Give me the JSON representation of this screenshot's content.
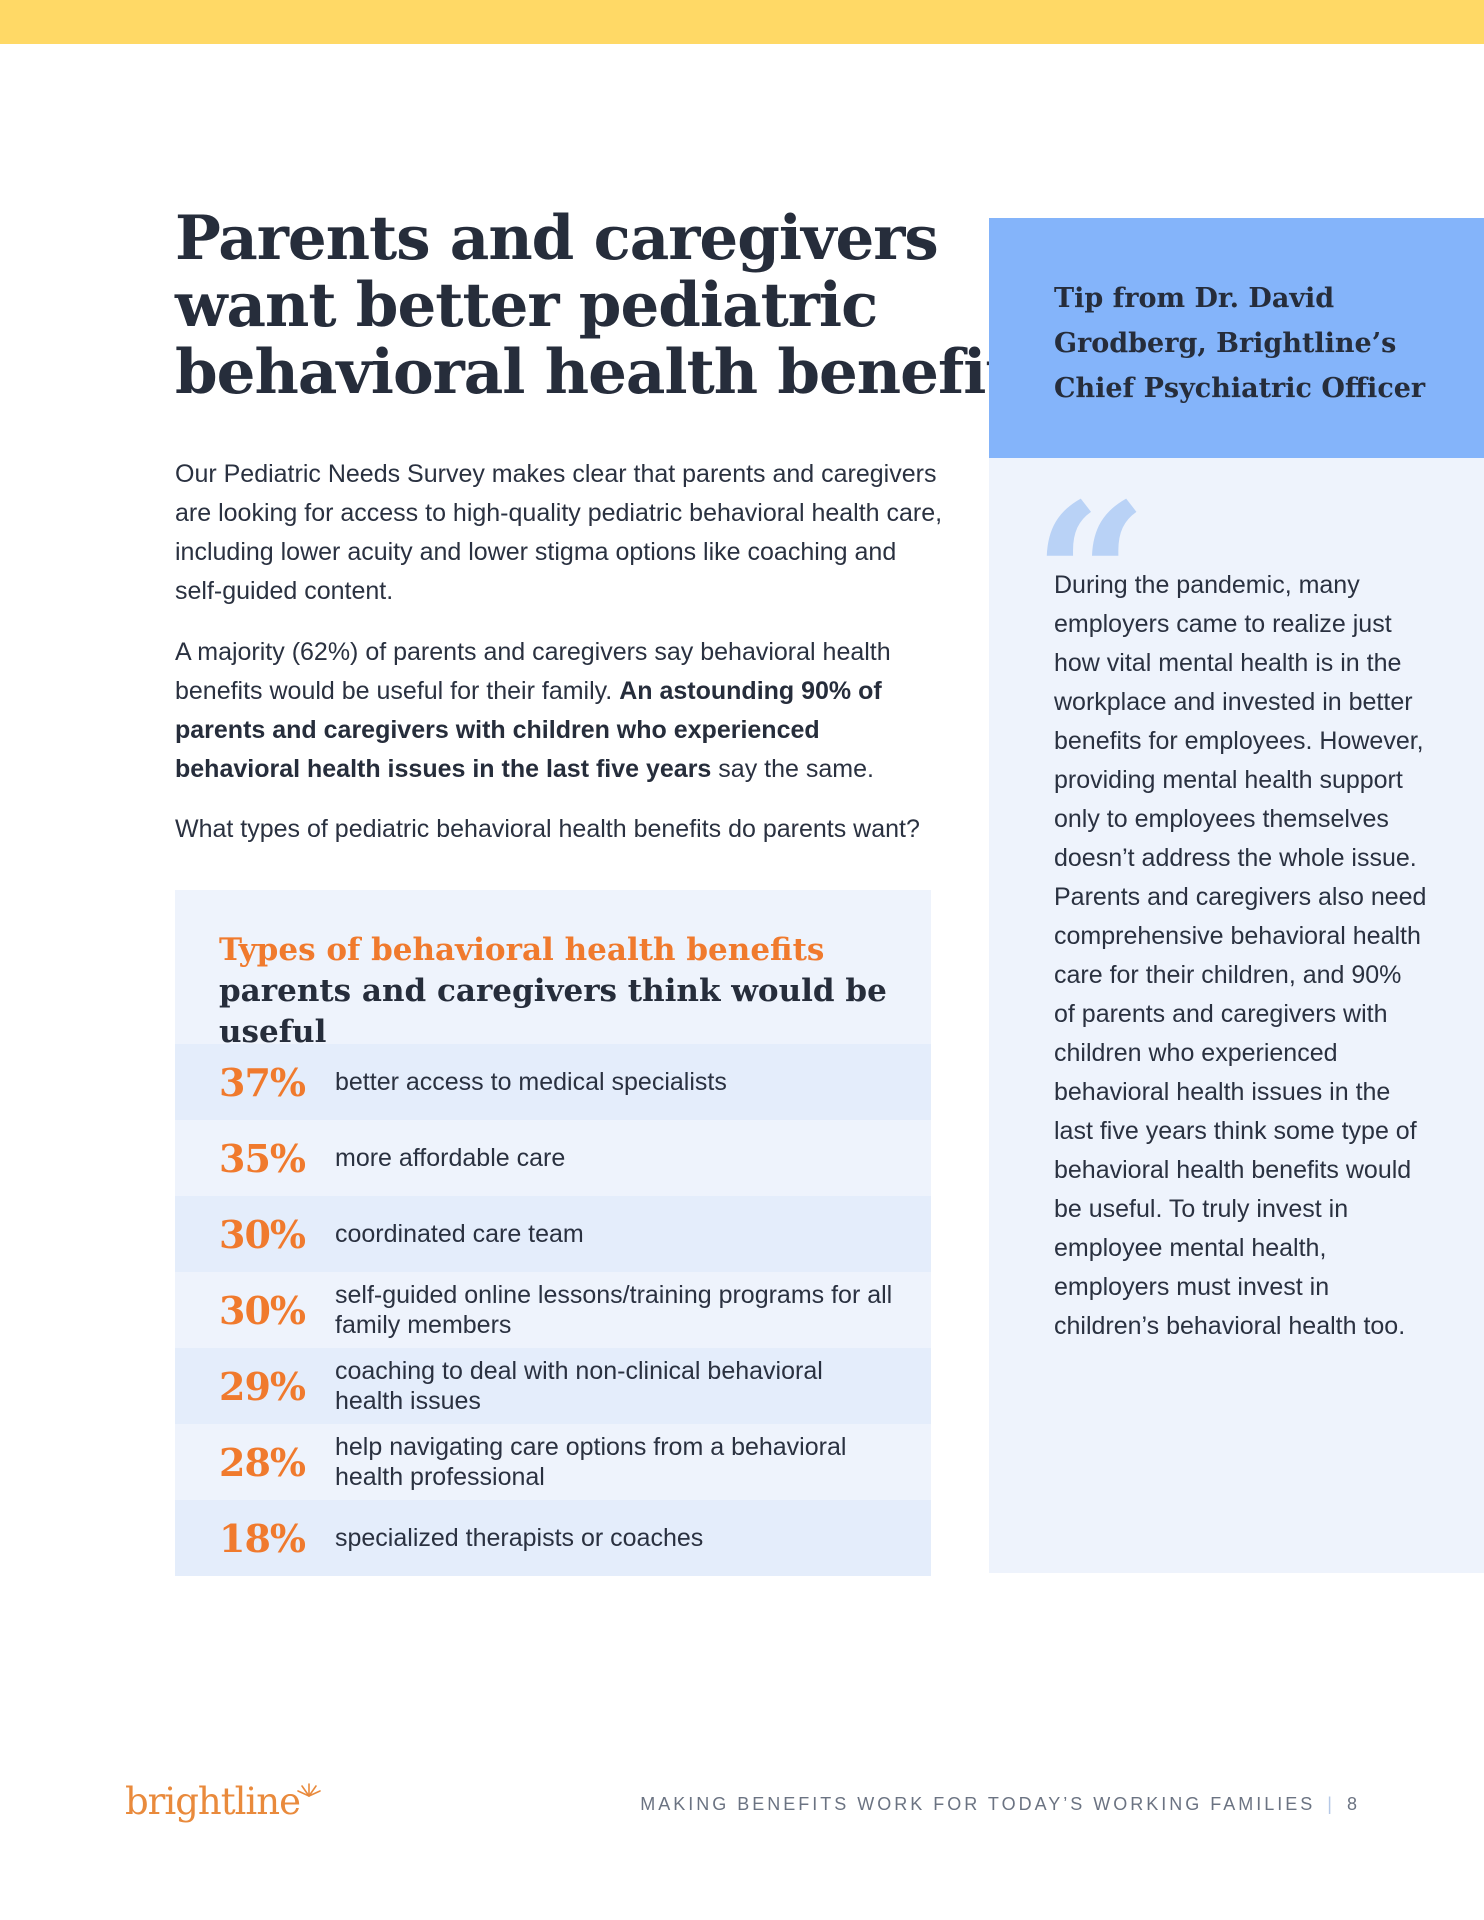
{
  "headline": [
    "Parents and caregivers",
    "want better pediatric",
    "behavioral health benefits"
  ],
  "intro": {
    "para1": "Our Pediatric Needs Survey makes clear that parents and caregivers are looking for access to high-quality pediatric behavioral health care, including lower acuity and lower stigma options like coaching and self-guided content.",
    "para2_start": "A majority (62%) of parents and caregivers say behavioral health benefits would be useful for their family. ",
    "para2_bold": "An astounding 90% of parents and caregivers with children who experienced behavioral health issues in the last five years",
    "para2_end": " say the same.",
    "para3": "What types of pediatric behavioral health benefits do parents want?"
  },
  "benefits_box": {
    "title_accent": "Types of behavioral health benefits",
    "title_rest": " parents and caregivers think would be useful",
    "rows": [
      {
        "pct": "37%",
        "label": "better access to medical specialists"
      },
      {
        "pct": "35%",
        "label": "more affordable care"
      },
      {
        "pct": "30%",
        "label": "coordinated care team"
      },
      {
        "pct": "30%",
        "label": "self-guided online lessons/training programs for all family members"
      },
      {
        "pct": "29%",
        "label": "coaching to deal with non-clinical behavioral health issues"
      },
      {
        "pct": "28%",
        "label": "help navigating care options from a behavioral health professional"
      },
      {
        "pct": "18%",
        "label": "specialized therapists or coaches"
      }
    ]
  },
  "tip": {
    "title": "Tip from Dr. David Grodberg, Brightline’s Chief Psychiatric Officer",
    "quote_mark": "“",
    "quote": "During the pandemic, many employers came to realize just how vital mental health is in the workplace and invested in better benefits for employees. However, providing mental health support only to employees themselves doesn’t address the whole issue. Parents and caregivers also need comprehensive behavioral health care for their children, and 90% of parents and caregivers with children who experienced behavioral health issues in the last five years think some type of behavioral health benefits would be useful. To truly invest in employee mental health, employers must invest in children’s behavioral health too."
  },
  "footer": {
    "logo_text": "brightline",
    "tagline": "MAKING BENEFITS WORK FOR TODAY’S WORKING FAMILIES",
    "separator": "|",
    "page_number": "8"
  },
  "colors": {
    "top_bar": "#ffd966",
    "accent_orange": "#f07a2d",
    "tip_header_blue": "#84b4fa",
    "panel_bg": "#eef3fc",
    "row_alt_bg": "#e4edfb",
    "text_dark": "#262d3b"
  },
  "icons": {
    "quote": "quote-mark-icon",
    "logo_sun": "sun-rays-icon"
  }
}
